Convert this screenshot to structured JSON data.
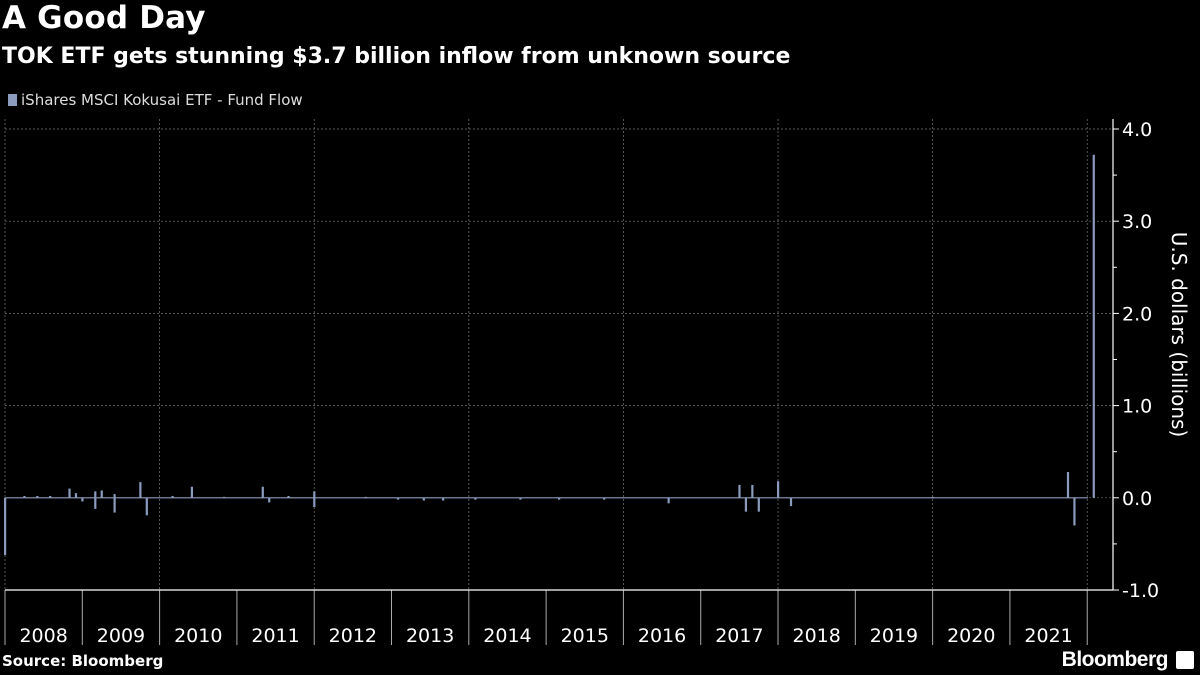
{
  "title": "A Good Day",
  "subtitle": "TOK ETF gets stunning $3.7 billion inflow from unknown source",
  "source": "Source: Bloomberg",
  "brand": "Bloomberg",
  "colors": {
    "bar": "#8a9bbd",
    "background": "#000000",
    "text": "#ffffff",
    "grid": "#777777"
  },
  "chart_data": {
    "type": "bar",
    "legend": {
      "entries": [
        "iShares MSCI Kokusai ETF - Fund Flow"
      ],
      "placement": "top-left"
    },
    "ylabel": "U.S. dollars (billions)",
    "ylim": [
      -1.0,
      4.0
    ],
    "yticks": [
      "4.0",
      "3.0",
      "2.0",
      "1.0",
      "0.0",
      "-1.0"
    ],
    "xlim": [
      "2008-01",
      "2022-05"
    ],
    "xticks": [
      "2008",
      "2009",
      "2010",
      "2011",
      "2012",
      "2013",
      "2014",
      "2015",
      "2016",
      "2017",
      "2018",
      "2019",
      "2020",
      "2021"
    ],
    "grid": true,
    "y_axis_side": "right",
    "series": [
      {
        "name": "iShares MSCI Kokusai ETF - Fund Flow",
        "points": [
          {
            "x": "2008-01",
            "y": -0.62
          },
          {
            "x": "2008-04",
            "y": 0.02
          },
          {
            "x": "2008-06",
            "y": 0.02
          },
          {
            "x": "2008-08",
            "y": 0.02
          },
          {
            "x": "2008-11",
            "y": 0.1
          },
          {
            "x": "2008-12",
            "y": 0.05
          },
          {
            "x": "2009-01",
            "y": -0.04
          },
          {
            "x": "2009-03",
            "y": 0.07
          },
          {
            "x": "2009-03",
            "y": -0.12
          },
          {
            "x": "2009-04",
            "y": 0.08
          },
          {
            "x": "2009-06",
            "y": 0.04
          },
          {
            "x": "2009-06",
            "y": -0.16
          },
          {
            "x": "2009-10",
            "y": 0.17
          },
          {
            "x": "2009-11",
            "y": -0.19
          },
          {
            "x": "2010-03",
            "y": 0.02
          },
          {
            "x": "2010-06",
            "y": 0.12
          },
          {
            "x": "2010-11",
            "y": 0.01
          },
          {
            "x": "2011-05",
            "y": 0.12
          },
          {
            "x": "2011-06",
            "y": -0.05
          },
          {
            "x": "2011-09",
            "y": 0.02
          },
          {
            "x": "2012-01",
            "y": 0.07
          },
          {
            "x": "2012-01",
            "y": -0.1
          },
          {
            "x": "2012-09",
            "y": 0.01
          },
          {
            "x": "2013-02",
            "y": -0.02
          },
          {
            "x": "2013-06",
            "y": -0.03
          },
          {
            "x": "2013-09",
            "y": -0.03
          },
          {
            "x": "2014-02",
            "y": -0.02
          },
          {
            "x": "2014-09",
            "y": -0.02
          },
          {
            "x": "2015-03",
            "y": -0.02
          },
          {
            "x": "2015-10",
            "y": -0.02
          },
          {
            "x": "2016-08",
            "y": -0.06
          },
          {
            "x": "2017-07",
            "y": 0.14
          },
          {
            "x": "2017-08",
            "y": -0.15
          },
          {
            "x": "2017-09",
            "y": 0.14
          },
          {
            "x": "2017-10",
            "y": -0.15
          },
          {
            "x": "2018-01",
            "y": 0.18
          },
          {
            "x": "2018-03",
            "y": -0.09
          },
          {
            "x": "2020-01",
            "y": 0.01
          },
          {
            "x": "2021-10",
            "y": 0.28
          },
          {
            "x": "2021-11",
            "y": -0.3
          },
          {
            "x": "2022-02",
            "y": 3.72
          }
        ]
      }
    ]
  }
}
